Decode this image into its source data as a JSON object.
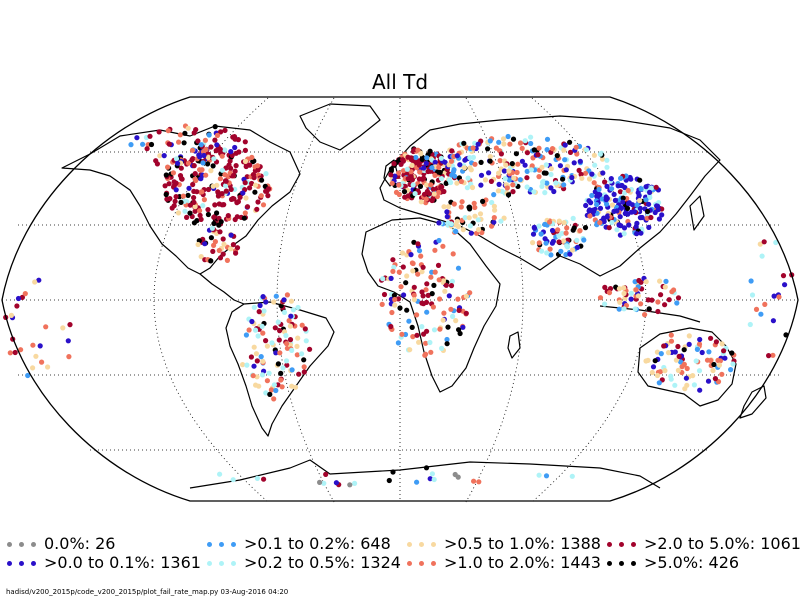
{
  "title": "All Td",
  "footer": "hadisd/v200_2015p/code_v200_2015p/plot_fail_rate_map.py   03-Aug-2016 04:20",
  "map": {
    "projection": "robinson",
    "graticule": "dotted",
    "background": "#ffffff",
    "coastline_color": "#000000"
  },
  "legend": {
    "columns": [
      [
        {
          "label": "0.0%: 26",
          "color": "#8c8c8c"
        },
        {
          "label": ">0.0 to 0.1%: 1361",
          "color": "#2a10c9"
        }
      ],
      [
        {
          "label": ">0.1 to 0.2%: 648",
          "color": "#3f9cf5"
        },
        {
          "label": ">0.2 to 0.5%: 1324",
          "color": "#aef3f7"
        }
      ],
      [
        {
          "label": ">0.5 to 1.0%: 1388",
          "color": "#f8d9a0"
        },
        {
          "label": ">1.0 to 2.0%: 1443",
          "color": "#f0725c"
        }
      ],
      [
        {
          "label": ">2.0 to 5.0%: 1061",
          "color": "#a2032c"
        },
        {
          "label": ">5.0%: 426",
          "color": "#000000"
        }
      ]
    ]
  }
}
